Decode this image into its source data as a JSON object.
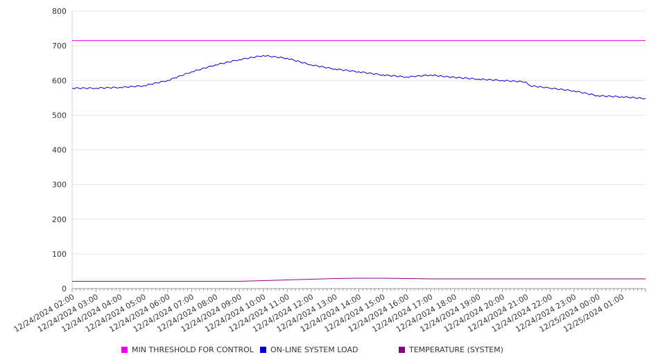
{
  "chart_data": {
    "type": "line",
    "title": "",
    "xlabel": "",
    "ylabel": "",
    "ylim": [
      0,
      800
    ],
    "yticks": [
      0,
      100,
      200,
      300,
      400,
      500,
      600,
      700,
      800
    ],
    "grid": true,
    "legend_position": "bottom",
    "x_tick_labels": [
      "12/24/2024 02:00",
      "12/24/2024 03:00",
      "12/24/2024 04:00",
      "12/24/2024 05:00",
      "12/24/2024 06:00",
      "12/24/2024 07:00",
      "12/24/2024 08:00",
      "12/24/2024 09:00",
      "12/24/2024 10:00",
      "12/24/2024 11:00",
      "12/24/2024 12:00",
      "12/24/2024 13:00",
      "12/24/2024 14:00",
      "12/24/2024 15:00",
      "12/24/2024 16:00",
      "12/24/2024 17:00",
      "12/24/2024 18:00",
      "12/24/2024 19:00",
      "12/24/2024 20:00",
      "12/24/2024 21:00",
      "12/24/2024 22:00",
      "12/24/2024 23:00",
      "12/25/2024 00:00",
      "12/25/2024 01:00"
    ],
    "x_range": [
      "12/24/2024 02:00",
      "12/25/2024 02:00"
    ],
    "series": [
      {
        "name": "MIN THRESHOLD FOR CONTROL",
        "color": "#ee00ee",
        "points": [
          [
            "12/24/2024 02:00",
            715
          ],
          [
            "12/25/2024 02:00",
            715
          ]
        ]
      },
      {
        "name": "ON-LINE SYSTEM LOAD",
        "color": "#0000cc",
        "points": [
          [
            "12/24/2024 02:00",
            578
          ],
          [
            "12/24/2024 03:00",
            578
          ],
          [
            "12/24/2024 04:00",
            580
          ],
          [
            "12/24/2024 05:00",
            585
          ],
          [
            "12/24/2024 06:00",
            600
          ],
          [
            "12/24/2024 07:00",
            625
          ],
          [
            "12/24/2024 08:00",
            645
          ],
          [
            "12/24/2024 09:00",
            660
          ],
          [
            "12/24/2024 10:00",
            672
          ],
          [
            "12/24/2024 11:00",
            664
          ],
          [
            "12/24/2024 12:00",
            645
          ],
          [
            "12/24/2024 13:00",
            633
          ],
          [
            "12/24/2024 14:00",
            625
          ],
          [
            "12/24/2024 15:00",
            616
          ],
          [
            "12/24/2024 16:00",
            610
          ],
          [
            "12/24/2024 17:00",
            616
          ],
          [
            "12/24/2024 17:30",
            612
          ],
          [
            "12/24/2024 18:00",
            609
          ],
          [
            "12/24/2024 19:00",
            604
          ],
          [
            "12/24/2024 20:00",
            600
          ],
          [
            "12/24/2024 21:00",
            596
          ],
          [
            "12/24/2024 21:10",
            585
          ],
          [
            "12/24/2024 22:00",
            578
          ],
          [
            "12/24/2024 23:00",
            570
          ],
          [
            "12/25/2024 00:00",
            556
          ],
          [
            "12/25/2024 01:00",
            553
          ],
          [
            "12/25/2024 02:00",
            548
          ]
        ]
      },
      {
        "name": "TEMPERATURE (SYSTEM)",
        "color": "#880088",
        "points": [
          [
            "12/24/2024 02:00",
            21
          ],
          [
            "12/24/2024 09:00",
            21
          ],
          [
            "12/24/2024 10:00",
            23
          ],
          [
            "12/24/2024 11:00",
            25
          ],
          [
            "12/24/2024 12:00",
            27
          ],
          [
            "12/24/2024 13:00",
            29
          ],
          [
            "12/24/2024 14:00",
            30
          ],
          [
            "12/24/2024 15:00",
            30
          ],
          [
            "12/24/2024 17:00",
            28
          ],
          [
            "12/25/2024 02:00",
            28
          ]
        ]
      }
    ]
  }
}
